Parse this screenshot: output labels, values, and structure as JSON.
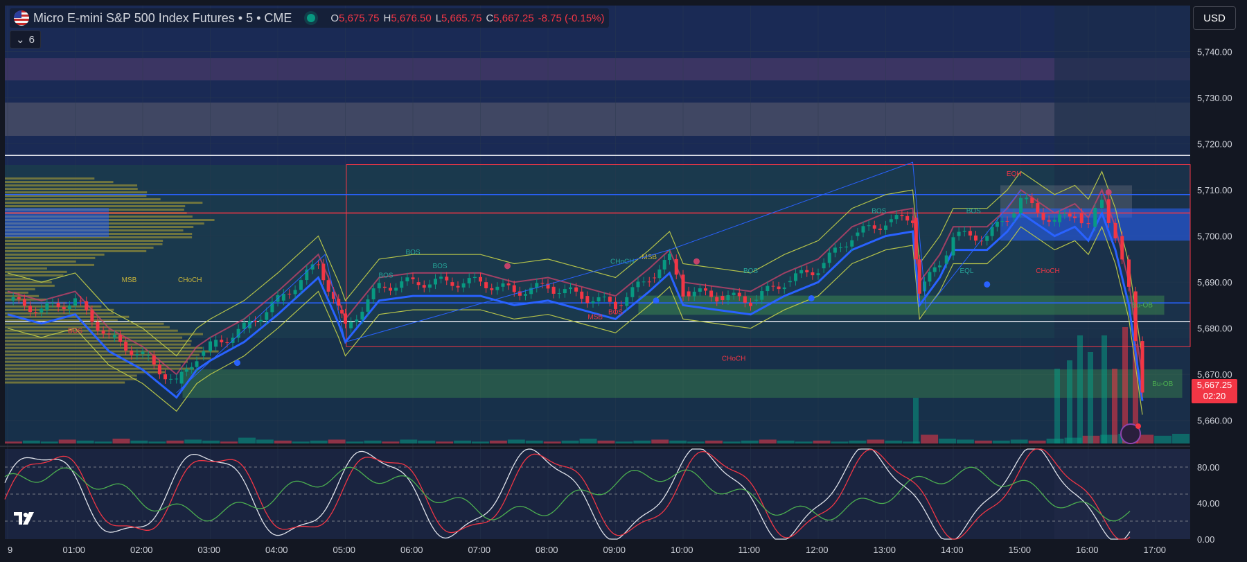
{
  "header": {
    "symbol": "Micro E-mini S&P 500 Index Futures • 5 • CME",
    "o_label": "O",
    "o_value": "5,675.75",
    "h_label": "H",
    "h_value": "5,676.50",
    "l_label": "L",
    "l_value": "5,665.75",
    "c_label": "C",
    "c_value": "5,667.25",
    "change": "-8.75 (-0.15%)"
  },
  "collapse": {
    "count": "6"
  },
  "currency": "USD",
  "last_price": {
    "value": "5,667.25",
    "countdown": "02:20"
  },
  "colors": {
    "up": "#089981",
    "down": "#f23645",
    "blue": "#2962ff",
    "bg": "#131722"
  },
  "chart_data": {
    "type": "candlestick",
    "price_axis": {
      "ticks": [
        "5,740.00",
        "5,730.00",
        "5,720.00",
        "5,710.00",
        "5,700.00",
        "5,690.00",
        "5,680.00",
        "5,670.00",
        "5,660.00"
      ],
      "range": [
        5655,
        5750
      ]
    },
    "time_axis": {
      "ticks": [
        "9",
        "01:00",
        "02:00",
        "03:00",
        "04:00",
        "05:00",
        "06:00",
        "07:00",
        "08:00",
        "09:00",
        "10:00",
        "11:00",
        "12:00",
        "13:00",
        "14:00",
        "15:00",
        "16:00",
        "17:00"
      ]
    },
    "oscillator_axis": {
      "ticks": [
        "80.00",
        "40.00",
        "0.00"
      ],
      "range": [
        0,
        100
      ]
    },
    "close_path": [
      [
        0.0,
        5686
      ],
      [
        0.5,
        5684
      ],
      [
        1.0,
        5686
      ],
      [
        1.5,
        5678
      ],
      [
        2.0,
        5674
      ],
      [
        2.5,
        5668
      ],
      [
        2.8,
        5674
      ],
      [
        3.0,
        5676
      ],
      [
        3.5,
        5680
      ],
      [
        4.0,
        5686
      ],
      [
        4.6,
        5694
      ],
      [
        4.9,
        5684
      ],
      [
        5.0,
        5680
      ],
      [
        5.5,
        5689
      ],
      [
        6.0,
        5690
      ],
      [
        6.5,
        5690
      ],
      [
        7.0,
        5690
      ],
      [
        7.5,
        5688
      ],
      [
        8.0,
        5689
      ],
      [
        8.5,
        5687
      ],
      [
        9.0,
        5685
      ],
      [
        9.5,
        5691
      ],
      [
        9.8,
        5695
      ],
      [
        10.0,
        5688
      ],
      [
        10.5,
        5687
      ],
      [
        11.0,
        5686
      ],
      [
        11.5,
        5690
      ],
      [
        12.0,
        5693
      ],
      [
        12.5,
        5700
      ],
      [
        13.0,
        5703
      ],
      [
        13.4,
        5704
      ],
      [
        13.5,
        5688
      ],
      [
        13.8,
        5694
      ],
      [
        14.0,
        5700
      ],
      [
        14.5,
        5700
      ],
      [
        14.8,
        5704
      ],
      [
        15.0,
        5708
      ],
      [
        15.5,
        5703
      ],
      [
        15.8,
        5705
      ],
      [
        16.0,
        5702
      ],
      [
        16.2,
        5708
      ],
      [
        16.4,
        5700
      ],
      [
        16.6,
        5688
      ],
      [
        16.8,
        5667.25
      ]
    ],
    "volume": [
      0.2,
      0.3,
      0.2,
      0.4,
      0.3,
      0.2,
      0.5,
      0.3,
      0.2,
      0.3,
      0.4,
      0.3,
      0.2,
      0.6,
      0.4,
      0.3,
      0.2,
      0.3,
      0.4,
      0.2,
      0.3,
      0.2,
      0.4,
      0.3,
      0.2,
      0.3,
      0.2,
      0.3,
      0.4,
      0.3,
      0.2,
      0.3,
      0.5,
      0.3,
      0.2,
      0.3,
      0.4,
      0.3,
      0.2,
      0.3,
      0.2,
      0.3,
      0.4,
      0.3,
      0.2,
      0.3,
      0.2,
      0.3,
      0.4,
      0.3,
      0.2,
      0.9,
      0.5,
      0.4,
      0.3,
      0.3,
      0.4,
      0.3,
      0.5,
      0.6,
      0.8,
      0.9,
      1.0,
      0.9,
      0.8,
      1.0
    ],
    "levels": [
      {
        "price": 5717.5,
        "color": "#e0e3eb"
      },
      {
        "price": 5709.0,
        "color": "#2962ff"
      },
      {
        "price": 5705.0,
        "color": "#f23645"
      },
      {
        "price": 5685.5,
        "color": "#2962ff"
      },
      {
        "price": 5681.5,
        "color": "#e0e3eb"
      }
    ],
    "annotations": [
      {
        "text": "BOS",
        "t": 6.0,
        "p": 5696,
        "color": "#26a69a"
      },
      {
        "text": "BOS",
        "t": 5.6,
        "p": 5691,
        "color": "#26a69a"
      },
      {
        "text": "BOS",
        "t": 6.4,
        "p": 5693,
        "color": "#26a69a"
      },
      {
        "text": "MSB",
        "t": 1.8,
        "p": 5690,
        "color": "#c8b53a"
      },
      {
        "text": "CHoCH",
        "t": 2.7,
        "p": 5690,
        "color": "#c8b53a"
      },
      {
        "text": "BOS",
        "t": 1.0,
        "p": 5679,
        "color": "#f23645"
      },
      {
        "text": "CHoCH",
        "t": 9.1,
        "p": 5694,
        "color": "#26a69a"
      },
      {
        "text": "MSB",
        "t": 9.5,
        "p": 5695,
        "color": "#c8b53a"
      },
      {
        "text": "MSB",
        "t": 8.7,
        "p": 5682,
        "color": "#f23645"
      },
      {
        "text": "BOS",
        "t": 9.0,
        "p": 5683,
        "color": "#f23645"
      },
      {
        "text": "BOS",
        "t": 11.0,
        "p": 5692,
        "color": "#26a69a"
      },
      {
        "text": "CHoCH",
        "t": 10.75,
        "p": 5673,
        "color": "#f23645"
      },
      {
        "text": "BOS",
        "t": 12.9,
        "p": 5705,
        "color": "#26a69a"
      },
      {
        "text": "BOS",
        "t": 14.3,
        "p": 5705,
        "color": "#26a69a"
      },
      {
        "text": "EQH",
        "t": 14.9,
        "p": 5713,
        "color": "#f23645"
      },
      {
        "text": "EQL",
        "t": 14.2,
        "p": 5692,
        "color": "#26a69a"
      },
      {
        "text": "CHoCH",
        "t": 15.4,
        "p": 5692,
        "color": "#f23645"
      },
      {
        "text": "Bu-OB",
        "t": 16.8,
        "p": 5684.5,
        "color": "#4caf50"
      },
      {
        "text": "Bu-OB",
        "t": 17.1,
        "p": 5667.5,
        "color": "#4caf50"
      }
    ]
  }
}
